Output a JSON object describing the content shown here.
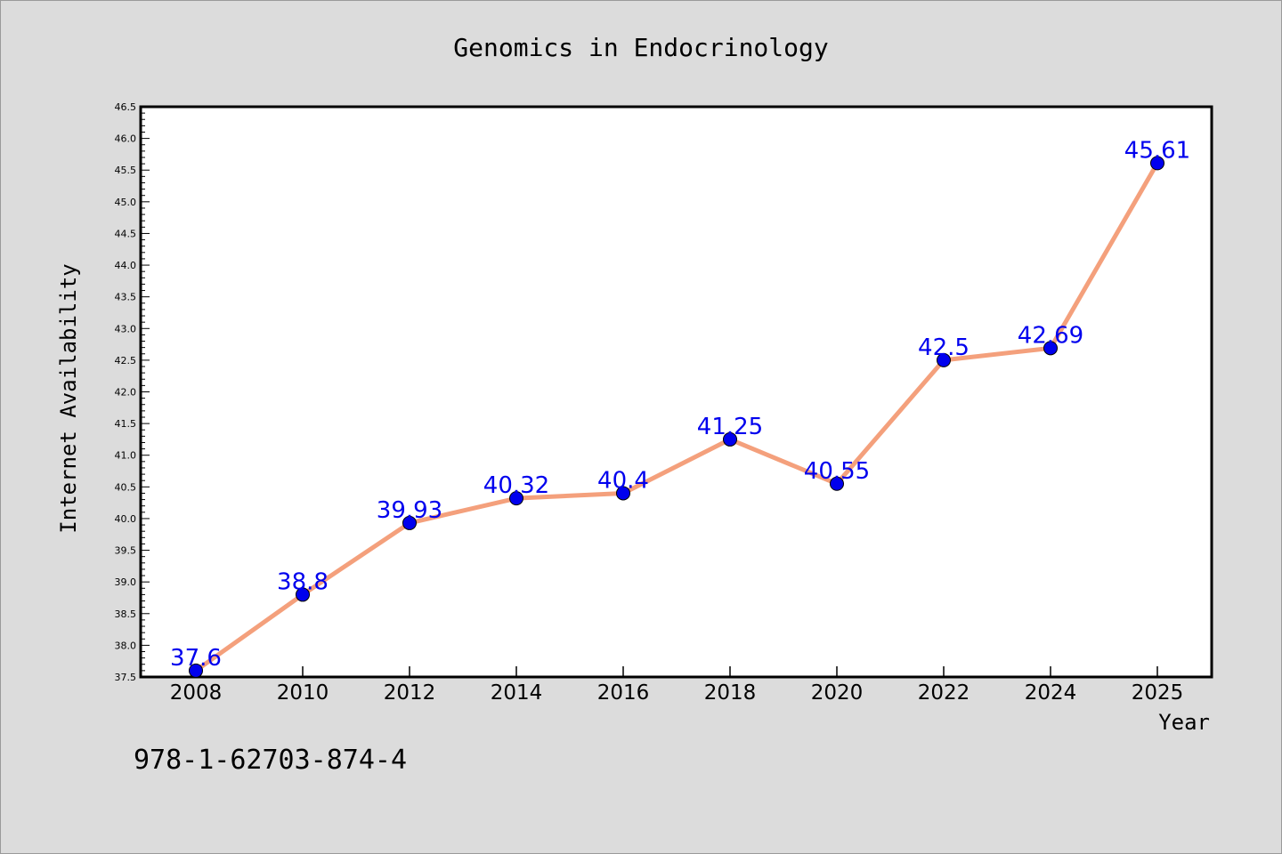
{
  "chart_data": {
    "type": "line",
    "title": "Genomics in Endocrinology",
    "xlabel": "Year",
    "ylabel": "Internet Availability",
    "x": [
      2008,
      2010,
      2012,
      2014,
      2016,
      2018,
      2020,
      2022,
      2024,
      2025
    ],
    "x_tick_labels": [
      "2008",
      "2010",
      "2012",
      "2014",
      "2016",
      "2018",
      "2020",
      "2022",
      "2024",
      "2025"
    ],
    "series": [
      {
        "values": [
          37.6,
          38.8,
          39.93,
          40.32,
          40.4,
          41.25,
          40.55,
          42.5,
          42.69,
          45.61
        ],
        "data_labels": [
          "37.6",
          "38.8",
          "39.93",
          "40.32",
          "40.4",
          "41.25",
          "40.55",
          "42.5",
          "42.69",
          "45.61"
        ]
      }
    ],
    "ylim": [
      37.5,
      46.5
    ],
    "y_tick_labels": [
      "37.5",
      "38.0",
      "38.5",
      "39.0",
      "39.5",
      "40.0",
      "40.5",
      "41.0",
      "41.5",
      "42.0",
      "42.5",
      "43.0",
      "43.5",
      "44.0",
      "44.5",
      "45.0",
      "45.5",
      "46.0",
      "46.5"
    ],
    "grid": false,
    "legend": "none"
  },
  "footer_text": "978-1-62703-874-4",
  "colors": {
    "background": "#dcdcdc",
    "plot_background": "#ffffff",
    "line": "#f4a07c",
    "marker": "#0000ee",
    "data_label": "#0000ee"
  }
}
